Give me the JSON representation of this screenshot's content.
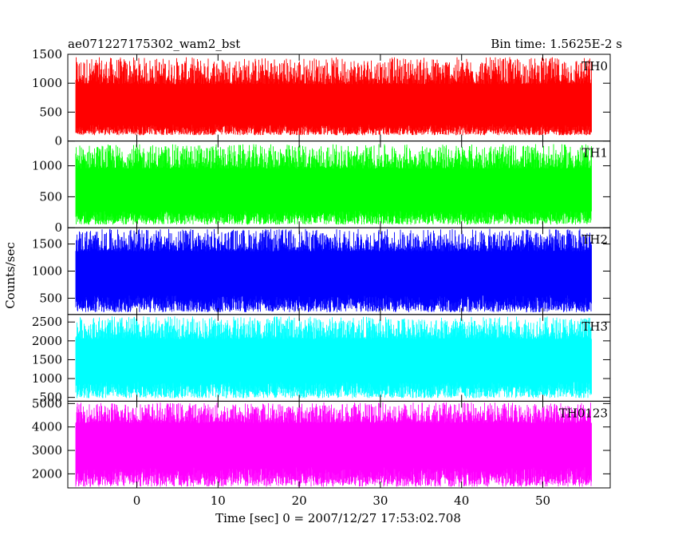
{
  "chart_data": {
    "type": "line",
    "title": "ae071227175302_wam2_bst",
    "title_right": "Bin time: 1.5625E-2 s",
    "xlabel": "Time [sec] 0 = 2007/12/27 17:53:02.708",
    "ylabel": "Counts/sec",
    "xlim": [
      -8.5,
      58.3
    ],
    "x_ticks": [
      0,
      10,
      20,
      30,
      40,
      50
    ],
    "x_tick_labels": [
      "0",
      "10",
      "20",
      "30",
      "40",
      "50"
    ],
    "data_x_range": [
      -7.5,
      56.0
    ],
    "bin_time": 0.015625,
    "grid": false,
    "panels": [
      {
        "name": "TH0",
        "color": "#ff0000",
        "ylim": [
          0,
          1500
        ],
        "y_ticks": [
          0,
          500,
          1000,
          1500
        ],
        "y_tick_labels": [
          "0",
          "500",
          "1000",
          "1500"
        ],
        "mean": 520,
        "low": 100,
        "high": 1450,
        "clip_max": 1500
      },
      {
        "name": "TH1",
        "color": "#00ff00",
        "ylim": [
          0,
          1400
        ],
        "y_ticks": [
          0,
          500,
          1000
        ],
        "y_tick_labels": [
          "0",
          "500",
          "1000"
        ],
        "mean": 560,
        "low": 50,
        "high": 1350,
        "clip_max": 1400
      },
      {
        "name": "TH2",
        "color": "#0000ff",
        "ylim": [
          200,
          1800
        ],
        "y_ticks": [
          500,
          1000,
          1500
        ],
        "y_tick_labels": [
          "500",
          "1000",
          "1500"
        ],
        "mean": 950,
        "low": 240,
        "high": 1780,
        "clip_max": 1800
      },
      {
        "name": "TH3",
        "color": "#00ffff",
        "ylim": [
          400,
          2700
        ],
        "y_ticks": [
          500,
          1000,
          1500,
          2000,
          2500
        ],
        "y_tick_labels": [
          "500",
          "1000",
          "1500",
          "2000",
          "2500"
        ],
        "mean": 1450,
        "low": 480,
        "high": 2650,
        "clip_max": 2700
      },
      {
        "name": "TH0123",
        "color": "#ff00ff",
        "ylim": [
          1400,
          5100
        ],
        "y_ticks": [
          2000,
          3000,
          4000,
          5000
        ],
        "y_tick_labels": [
          "2000",
          "3000",
          "4000",
          "5000"
        ],
        "mean": 3300,
        "low": 1450,
        "high": 5050,
        "clip_max": 5100
      }
    ]
  }
}
